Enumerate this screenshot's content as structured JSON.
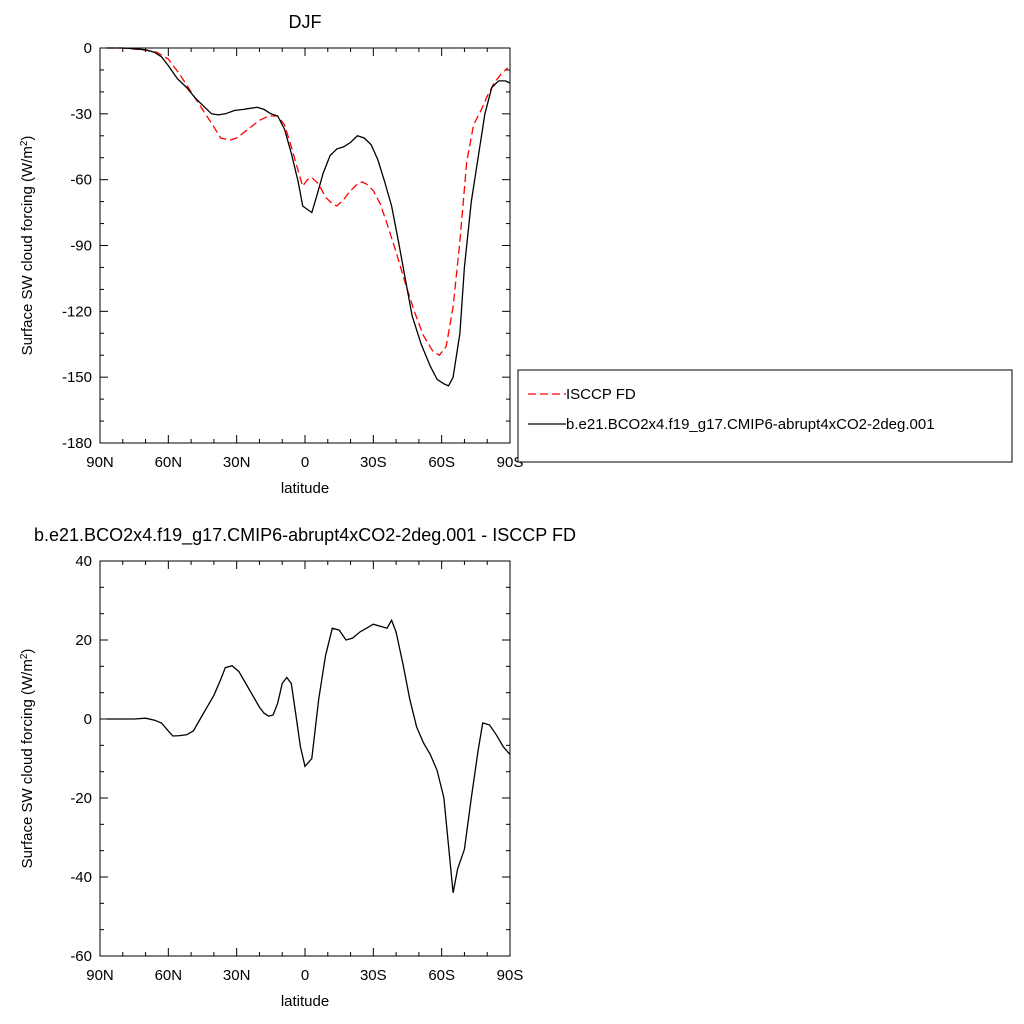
{
  "chart_data": [
    {
      "type": "line",
      "title": "DJF",
      "xlabel": "latitude",
      "ylabel": "Surface SW cloud forcing (W/m",
      "ylabel_sup": "2",
      "ylabel_close": ")",
      "xlim": [
        90,
        -90
      ],
      "ylim": [
        -180,
        0
      ],
      "yticks": [
        0,
        -30,
        -60,
        -90,
        -120,
        -150,
        -180
      ],
      "xticks": [
        {
          "value": 90,
          "label": "90N"
        },
        {
          "value": 60,
          "label": "60N"
        },
        {
          "value": 30,
          "label": "30N"
        },
        {
          "value": 0,
          "label": "0"
        },
        {
          "value": -30,
          "label": "30S"
        },
        {
          "value": -60,
          "label": "60S"
        },
        {
          "value": -90,
          "label": "90S"
        }
      ],
      "legend_position": "right",
      "series": [
        {
          "name": "ISCCP FD",
          "color": "#ff0000",
          "dash": "dashed",
          "points": [
            [
              87,
              0
            ],
            [
              80,
              0
            ],
            [
              75,
              -0.5
            ],
            [
              70,
              -1
            ],
            [
              65,
              -2
            ],
            [
              60,
              -5
            ],
            [
              55,
              -12
            ],
            [
              50,
              -20
            ],
            [
              45,
              -28
            ],
            [
              40,
              -36
            ],
            [
              37,
              -41
            ],
            [
              33,
              -42
            ],
            [
              30,
              -41
            ],
            [
              25,
              -37
            ],
            [
              20,
              -33
            ],
            [
              16,
              -31
            ],
            [
              12,
              -31
            ],
            [
              9,
              -35
            ],
            [
              6,
              -45
            ],
            [
              3,
              -56
            ],
            [
              1,
              -63
            ],
            [
              -1,
              -60
            ],
            [
              -3,
              -59
            ],
            [
              -6,
              -62
            ],
            [
              -9,
              -68
            ],
            [
              -12,
              -71
            ],
            [
              -14,
              -72
            ],
            [
              -17,
              -69
            ],
            [
              -20,
              -65
            ],
            [
              -23,
              -62
            ],
            [
              -25,
              -61
            ],
            [
              -27,
              -62
            ],
            [
              -30,
              -65
            ],
            [
              -33,
              -71
            ],
            [
              -36,
              -80
            ],
            [
              -40,
              -93
            ],
            [
              -44,
              -107
            ],
            [
              -48,
              -120
            ],
            [
              -52,
              -131
            ],
            [
              -56,
              -138
            ],
            [
              -59,
              -140
            ],
            [
              -62,
              -136
            ],
            [
              -65,
              -118
            ],
            [
              -68,
              -88
            ],
            [
              -71,
              -52
            ],
            [
              -74,
              -35
            ],
            [
              -77,
              -29
            ],
            [
              -80,
              -22
            ],
            [
              -83,
              -16
            ],
            [
              -86,
              -12
            ],
            [
              -89,
              -9
            ]
          ]
        },
        {
          "name": "b.e21.BCO2x4.f19_g17.CMIP6-abrupt4xCO2-2deg.001",
          "color": "#000000",
          "dash": "solid",
          "points": [
            [
              87,
              0
            ],
            [
              80,
              0
            ],
            [
              75,
              -0.3
            ],
            [
              70,
              -0.8
            ],
            [
              66,
              -2
            ],
            [
              63,
              -4
            ],
            [
              60,
              -8
            ],
            [
              56,
              -14
            ],
            [
              52,
              -18
            ],
            [
              48,
              -23
            ],
            [
              44,
              -27
            ],
            [
              41,
              -30
            ],
            [
              38,
              -30.5
            ],
            [
              35,
              -30
            ],
            [
              31,
              -28.5
            ],
            [
              27,
              -28
            ],
            [
              24,
              -27.5
            ],
            [
              21,
              -27
            ],
            [
              18,
              -28
            ],
            [
              15,
              -30
            ],
            [
              12,
              -31
            ],
            [
              9,
              -37
            ],
            [
              6,
              -48
            ],
            [
              3,
              -61
            ],
            [
              1,
              -72
            ],
            [
              -3,
              -75
            ],
            [
              -5,
              -68
            ],
            [
              -8,
              -57
            ],
            [
              -11,
              -49
            ],
            [
              -14,
              -46
            ],
            [
              -17,
              -45
            ],
            [
              -20,
              -43
            ],
            [
              -23,
              -40
            ],
            [
              -26,
              -41
            ],
            [
              -29,
              -44
            ],
            [
              -32,
              -51
            ],
            [
              -35,
              -61
            ],
            [
              -38,
              -72
            ],
            [
              -41,
              -88
            ],
            [
              -44,
              -105
            ],
            [
              -47,
              -122
            ],
            [
              -51,
              -135
            ],
            [
              -55,
              -145
            ],
            [
              -58,
              -151
            ],
            [
              -61,
              -153
            ],
            [
              -63,
              -154
            ],
            [
              -65,
              -150
            ],
            [
              -68,
              -130
            ],
            [
              -70,
              -100
            ],
            [
              -73,
              -70
            ],
            [
              -76,
              -50
            ],
            [
              -79,
              -30
            ],
            [
              -82,
              -18
            ],
            [
              -85,
              -15
            ],
            [
              -88,
              -15
            ],
            [
              -90,
              -16
            ]
          ]
        }
      ]
    },
    {
      "type": "line",
      "title": "b.e21.BCO2x4.f19_g17.CMIP6-abrupt4xCO2-2deg.001 - ISCCP FD",
      "xlabel": "latitude",
      "ylabel": "Surface SW cloud forcing (W/m",
      "ylabel_sup": "2",
      "ylabel_close": ")",
      "xlim": [
        90,
        -90
      ],
      "ylim": [
        -60,
        40
      ],
      "yticks": [
        40,
        20,
        0,
        -20,
        -40,
        -60
      ],
      "xticks": [
        {
          "value": 90,
          "label": "90N"
        },
        {
          "value": 60,
          "label": "60N"
        },
        {
          "value": 30,
          "label": "30N"
        },
        {
          "value": 0,
          "label": "0"
        },
        {
          "value": -30,
          "label": "30S"
        },
        {
          "value": -60,
          "label": "60S"
        },
        {
          "value": -90,
          "label": "90S"
        }
      ],
      "series": [
        {
          "color": "#000000",
          "dash": "solid",
          "points": [
            [
              87,
              0
            ],
            [
              80,
              0
            ],
            [
              75,
              0
            ],
            [
              70,
              0.2
            ],
            [
              66,
              -0.3
            ],
            [
              63,
              -1
            ],
            [
              60,
              -3
            ],
            [
              58,
              -4.3
            ],
            [
              55,
              -4.2
            ],
            [
              52,
              -4
            ],
            [
              49,
              -3
            ],
            [
              46,
              0
            ],
            [
              43,
              3
            ],
            [
              40,
              6
            ],
            [
              37,
              10
            ],
            [
              35,
              13
            ],
            [
              32,
              13.5
            ],
            [
              29,
              12
            ],
            [
              26,
              9
            ],
            [
              23,
              6
            ],
            [
              20,
              3
            ],
            [
              18,
              1.5
            ],
            [
              16,
              0.7
            ],
            [
              14,
              1
            ],
            [
              12,
              4
            ],
            [
              10,
              9
            ],
            [
              8,
              10.5
            ],
            [
              6,
              9
            ],
            [
              4,
              1
            ],
            [
              2,
              -7
            ],
            [
              0,
              -12
            ],
            [
              -3,
              -10
            ],
            [
              -6,
              5
            ],
            [
              -9,
              16
            ],
            [
              -12,
              23
            ],
            [
              -15,
              22.5
            ],
            [
              -18,
              20
            ],
            [
              -21,
              20.5
            ],
            [
              -24,
              22
            ],
            [
              -27,
              23
            ],
            [
              -30,
              24
            ],
            [
              -33,
              23.5
            ],
            [
              -36,
              23
            ],
            [
              -38,
              25
            ],
            [
              -40,
              22
            ],
            [
              -43,
              14
            ],
            [
              -46,
              5
            ],
            [
              -49,
              -2
            ],
            [
              -52,
              -6
            ],
            [
              -55,
              -9
            ],
            [
              -58,
              -13
            ],
            [
              -61,
              -20
            ],
            [
              -63,
              -32
            ],
            [
              -65,
              -44
            ],
            [
              -67,
              -38
            ],
            [
              -70,
              -33
            ],
            [
              -73,
              -20
            ],
            [
              -76,
              -8
            ],
            [
              -78,
              -1
            ],
            [
              -81,
              -1.5
            ],
            [
              -84,
              -4
            ],
            [
              -87,
              -7
            ],
            [
              -90,
              -9
            ]
          ]
        }
      ]
    }
  ]
}
